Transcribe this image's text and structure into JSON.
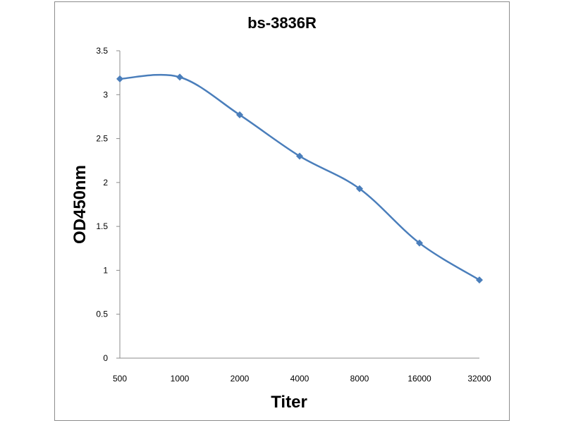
{
  "chart_data": {
    "type": "line",
    "title": "bs-3836R",
    "xlabel": "Titer",
    "ylabel": "OD450nm",
    "categories": [
      "500",
      "1000",
      "2000",
      "4000",
      "8000",
      "16000",
      "32000"
    ],
    "series": [
      {
        "values": [
          3.18,
          3.2,
          2.77,
          2.3,
          1.93,
          1.31,
          0.89
        ],
        "color": "#4a7ebb",
        "marker": "diamond",
        "smoothed": true
      }
    ],
    "ylim": [
      0,
      3.5
    ],
    "yticks": [
      "0",
      "0.5",
      "1",
      "1.5",
      "2",
      "2.5",
      "3",
      "3.5"
    ],
    "grid": false,
    "legend": "none"
  }
}
